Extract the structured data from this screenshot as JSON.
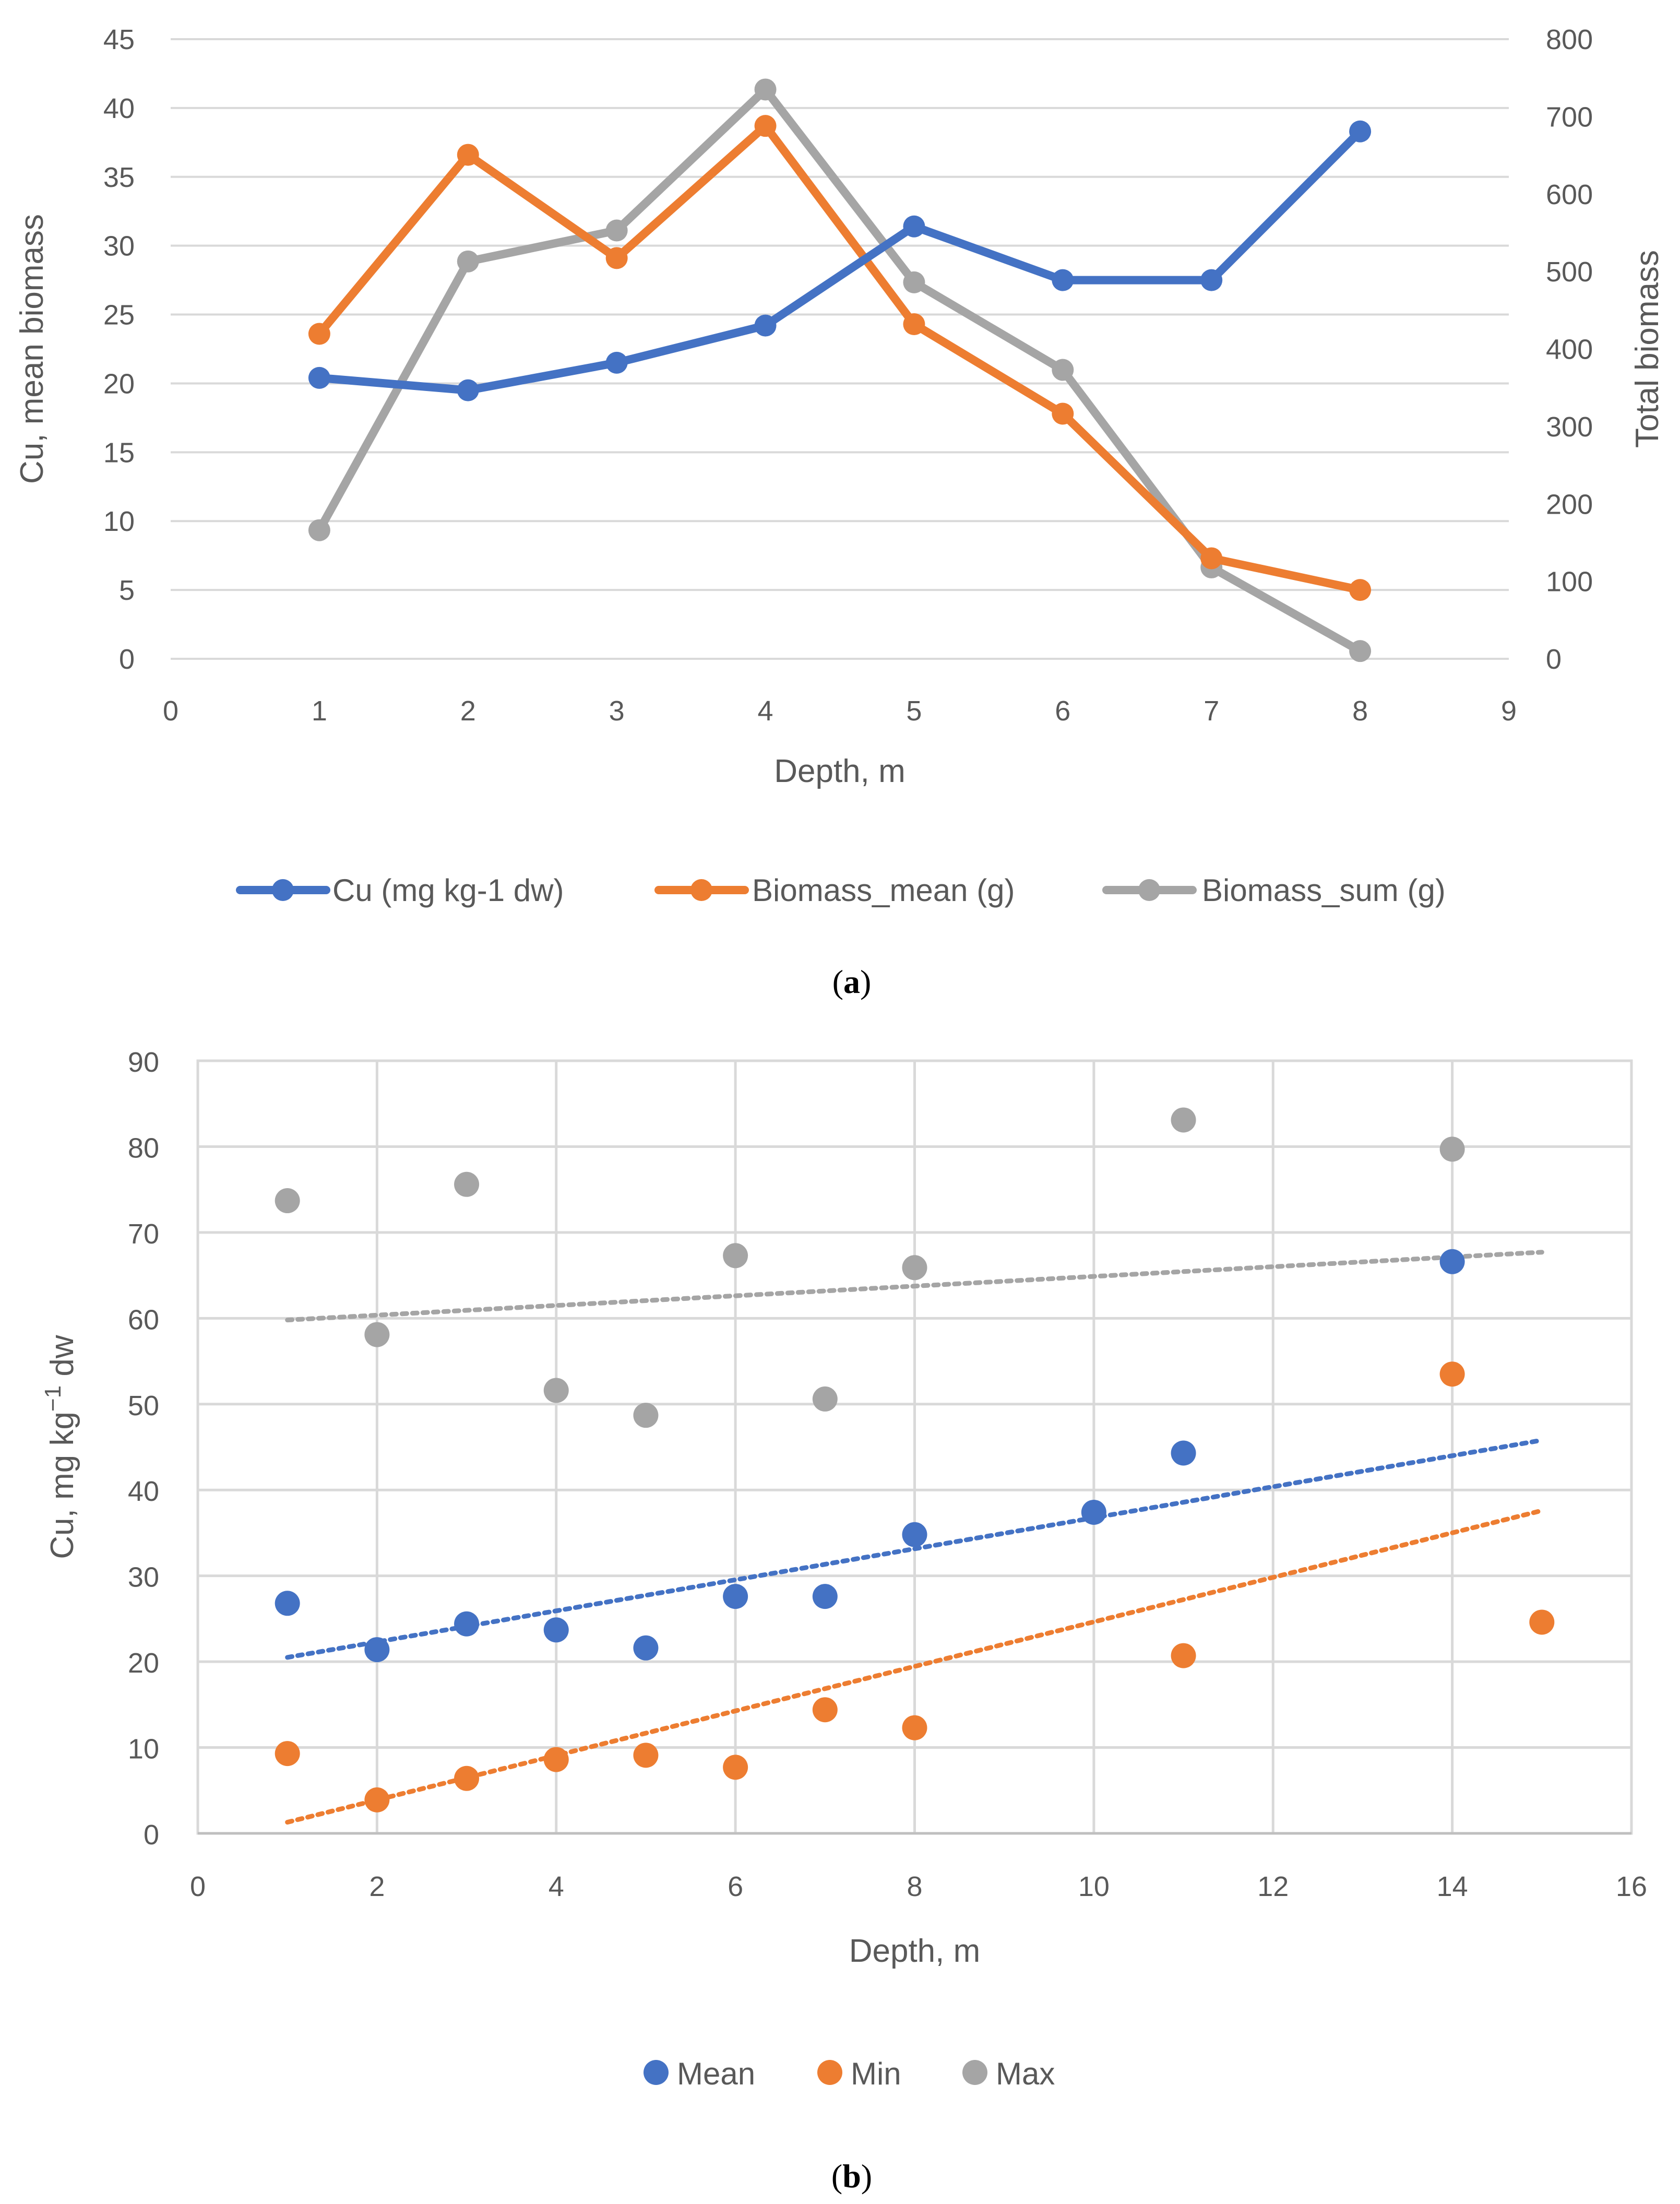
{
  "colors": {
    "blue": "#4472C4",
    "orange": "#ED7D31",
    "gray": "#A5A5A5",
    "grid": "#D9D9D9",
    "text": "#595959"
  },
  "chart_data": [
    {
      "type": "line",
      "panel_label_open": "(",
      "panel_label_letter": "a",
      "panel_label_close": ")",
      "xlabel": "Depth, m",
      "ylabel": "Cu, mean biomass",
      "y2label": "Total biomass",
      "xlim": [
        0,
        9
      ],
      "ylim": [
        0,
        45
      ],
      "y2lim": [
        0,
        800
      ],
      "x_ticks": [
        "0",
        "1",
        "2",
        "3",
        "4",
        "5",
        "6",
        "7",
        "8",
        "9"
      ],
      "y_ticks": [
        "0",
        "5",
        "10",
        "15",
        "20",
        "25",
        "30",
        "35",
        "40",
        "45"
      ],
      "y2_ticks": [
        "0",
        "100",
        "200",
        "300",
        "400",
        "500",
        "600",
        "700",
        "800"
      ],
      "x": [
        1,
        2,
        3,
        4,
        5,
        6,
        7,
        8
      ],
      "series": [
        {
          "name": "Cu (mg kg-1 dw)",
          "axis": "left",
          "color": "#4472C4",
          "values": [
            20.4,
            19.5,
            21.5,
            24.2,
            31.4,
            27.5,
            27.5,
            38.3
          ]
        },
        {
          "name": "Biomass_mean (g)",
          "axis": "left",
          "color": "#ED7D31",
          "values": [
            23.6,
            36.6,
            29.1,
            38.7,
            24.3,
            17.8,
            7.3,
            5.0
          ]
        },
        {
          "name": "Biomass_sum (g)",
          "axis": "right",
          "color": "#A5A5A5",
          "values": [
            166,
            513,
            553,
            735,
            486,
            373,
            118,
            10
          ]
        }
      ],
      "legend_position": "bottom",
      "grid": "horizontal"
    },
    {
      "type": "scatter",
      "panel_label_open": "(",
      "panel_label_letter": "b",
      "panel_label_close": ")",
      "xlabel": "Depth, m",
      "ylabel": "Cu, mg kg",
      "ylabel_sup": "−1",
      "ylabel_tail": " dw",
      "xlim": [
        0,
        16
      ],
      "ylim": [
        0,
        90
      ],
      "x_ticks": [
        "0",
        "2",
        "4",
        "6",
        "8",
        "10",
        "12",
        "14",
        "16"
      ],
      "y_ticks": [
        "0",
        "10",
        "20",
        "30",
        "40",
        "50",
        "60",
        "70",
        "80",
        "90"
      ],
      "series": [
        {
          "name": "Mean",
          "color": "#4472C4",
          "x": [
            1,
            2,
            3,
            4,
            5,
            6,
            7,
            8,
            10,
            11,
            14
          ],
          "y": [
            26.8,
            21.4,
            24.4,
            23.7,
            21.6,
            27.6,
            27.6,
            34.8,
            37.4,
            44.3,
            66.6
          ],
          "trend": [
            [
              1,
              20.5
            ],
            [
              15,
              45.8
            ]
          ]
        },
        {
          "name": "Min",
          "color": "#ED7D31",
          "x": [
            1,
            2,
            3,
            4,
            5,
            6,
            7,
            8,
            11,
            14,
            15
          ],
          "y": [
            9.3,
            3.9,
            6.4,
            8.6,
            9.1,
            7.7,
            14.4,
            12.3,
            20.7,
            53.5,
            24.6
          ],
          "trend": [
            [
              1,
              1.3
            ],
            [
              15,
              37.6
            ]
          ]
        },
        {
          "name": "Max",
          "color": "#A5A5A5",
          "x": [
            1,
            2,
            3,
            4,
            5,
            6,
            7,
            8,
            11,
            14
          ],
          "y": [
            73.7,
            58.1,
            75.6,
            51.6,
            48.7,
            67.3,
            50.6,
            65.9,
            83.1,
            79.7
          ],
          "trend": [
            [
              1,
              59.8
            ],
            [
              15,
              67.7
            ]
          ]
        }
      ],
      "legend_position": "bottom",
      "grid": "both"
    }
  ]
}
